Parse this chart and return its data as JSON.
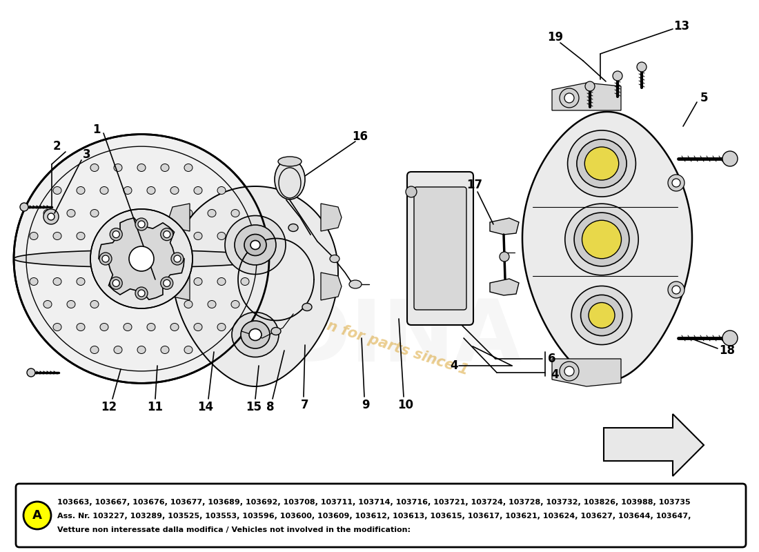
{
  "background_color": "#ffffff",
  "figure_width": 11.0,
  "figure_height": 8.0,
  "dpi": 100,
  "watermark_text": "a passion for parts since 1",
  "watermark_color": "#d4930a",
  "watermark_alpha": 0.45,
  "info_box": {
    "title_bold": "Vetture non interessate dalla modifica / Vehicles not involved in the modification:",
    "line1": "Ass. Nr. 103227, 103289, 103525, 103553, 103596, 103600, 103609, 103612, 103613, 103615, 103617, 103621, 103624, 103627, 103644, 103647,",
    "line2": "103663, 103667, 103676, 103677, 103689, 103692, 103708, 103711, 103714, 103716, 103721, 103724, 103728, 103732, 103826, 103988, 103735",
    "circle_label": "A",
    "circle_color": "#ffff00",
    "border_color": "#000000",
    "text_color": "#000000",
    "font_size": 8.0
  },
  "line_color": "#000000",
  "line_width": 1.2
}
